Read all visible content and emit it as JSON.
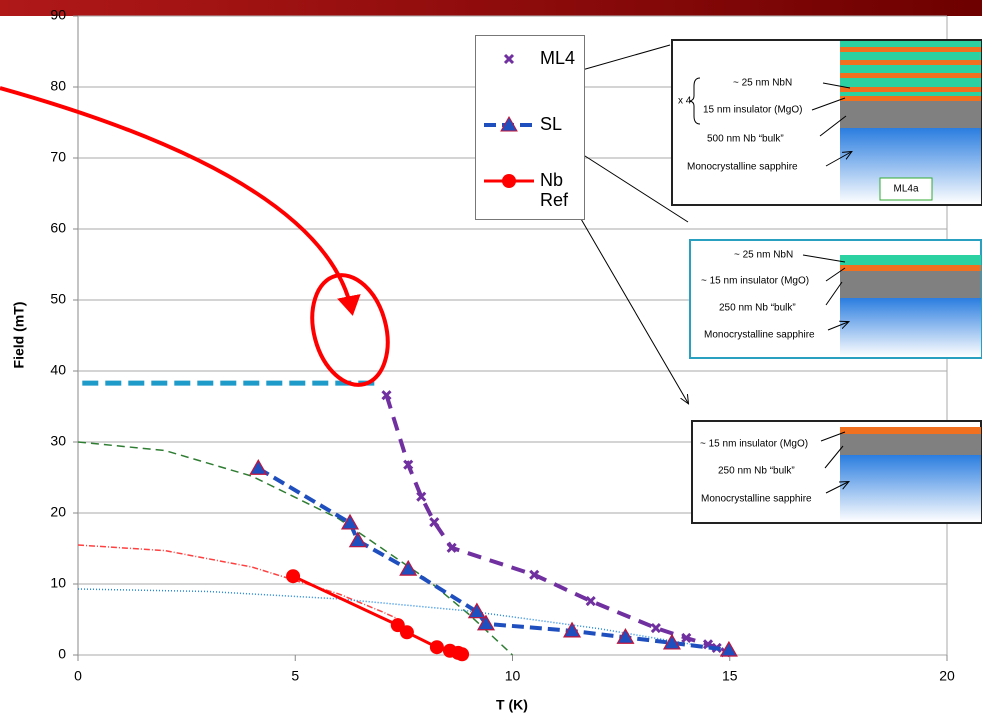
{
  "chart_data": {
    "type": "line",
    "xlabel": "T (K)",
    "ylabel": "Field (mT)",
    "xlim": [
      0,
      20
    ],
    "ylim": [
      0,
      90
    ],
    "xticks": [
      0,
      5,
      10,
      15,
      20
    ],
    "yticks": [
      0,
      10,
      20,
      30,
      40,
      50,
      60,
      70,
      80,
      90
    ],
    "grid": true,
    "series": [
      {
        "name": "ML4",
        "color": "#7030a0",
        "marker": "x",
        "x": [
          7.1,
          7.6,
          7.9,
          8.2,
          8.6,
          10.5,
          11.8,
          13.3,
          14.0,
          14.5,
          14.7,
          14.9
        ],
        "values": [
          36.6,
          26.8,
          22.3,
          18.7,
          15.1,
          11.3,
          7.6,
          3.8,
          2.4,
          1.5,
          1.0,
          0.4
        ]
      },
      {
        "name": "SL",
        "color": "#1f4fbf",
        "marker": "triangle",
        "x": [
          4.15,
          6.26,
          6.44,
          7.6,
          9.18,
          9.39,
          11.37,
          12.6,
          13.67,
          14.98
        ],
        "values": [
          26.3,
          18.6,
          16.1,
          12.1,
          6.1,
          4.4,
          3.4,
          2.5,
          1.7,
          0.7
        ]
      },
      {
        "name": "Nb Ref",
        "color": "#ff0000",
        "marker": "circle",
        "x": [
          4.95,
          7.36,
          7.57,
          8.26,
          8.56,
          8.75,
          8.84
        ],
        "values": [
          11.1,
          4.2,
          3.2,
          1.1,
          0.6,
          0.3,
          0.1
        ]
      }
    ],
    "curves": [
      {
        "color": "#2e7d32",
        "dash": "8 5",
        "x": [
          0,
          2,
          4,
          6,
          8,
          9,
          10
        ],
        "values": [
          30,
          28.8,
          25.2,
          19.2,
          10.8,
          5.7,
          0
        ]
      },
      {
        "color": "#ff4040",
        "dash": "6 2 1 2",
        "x": [
          0,
          2,
          4,
          6,
          7,
          7.5
        ],
        "values": [
          15.5,
          14.7,
          12.4,
          8.6,
          6.1,
          4.7
        ]
      },
      {
        "color": "#1e88e5",
        "dash": "1 2",
        "x": [
          0,
          3,
          6,
          9,
          12,
          15
        ],
        "values": [
          9.3,
          8.95,
          7.9,
          6.2,
          3.7,
          0.6
        ]
      },
      {
        "color": "#1f9bc9",
        "dash": "16 7",
        "width": 5,
        "x": [
          0.1,
          6.9
        ],
        "values": [
          38.3,
          38.3
        ]
      }
    ]
  },
  "insets": [
    {
      "lines": [
        "x 4",
        "~ 25 nm NbN",
        "15 nm insulator (MgO)",
        "500 nm Nb “bulk”",
        "Monocrystalline sapphire"
      ],
      "tag": "ML4a"
    },
    {
      "lines": [
        "~ 25 nm NbN",
        "~ 15 nm insulator (MgO)",
        "250 nm Nb “bulk”",
        "Monocrystalline sapphire"
      ]
    },
    {
      "lines": [
        "~ 15 nm insulator (MgO)",
        "250 nm Nb “bulk”",
        "Monocrystalline sapphire"
      ]
    }
  ]
}
